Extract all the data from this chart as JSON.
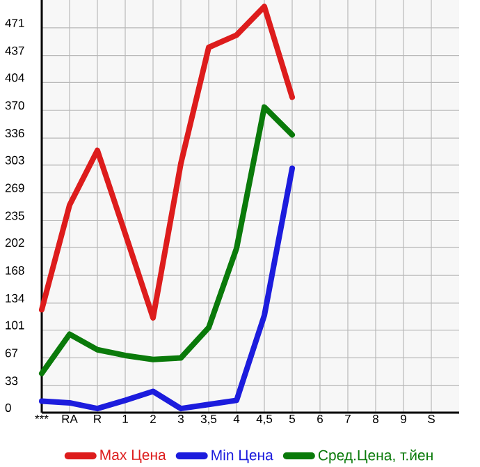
{
  "chart_data": {
    "type": "line",
    "categories": [
      "***",
      "RA",
      "R",
      "1",
      "2",
      "3",
      "3,5",
      "4",
      "4,5",
      "5",
      "6",
      "7",
      "8",
      "9",
      "S"
    ],
    "series": [
      {
        "name": "Max Цена",
        "color": "#dd1c1c",
        "values": [
          126,
          254,
          321,
          219,
          116,
          305,
          447,
          462,
          497,
          386,
          null,
          null,
          null,
          null,
          null
        ]
      },
      {
        "name": "Min Цена",
        "color": "#1c1cdd",
        "values": [
          14,
          12,
          5,
          15,
          26,
          5,
          10,
          15,
          119,
          299,
          null,
          null,
          null,
          null,
          null
        ]
      },
      {
        "name": "Сред.Цена, т.йен",
        "color": "#0a7a0a",
        "values": [
          48,
          96,
          77,
          70,
          65,
          67,
          104,
          201,
          374,
          340,
          null,
          null,
          null,
          null,
          null
        ]
      }
    ],
    "ylim": [
      0,
      505
    ],
    "yticks": [
      0,
      33,
      67,
      101,
      134,
      168,
      202,
      235,
      269,
      303,
      336,
      370,
      404,
      437,
      471
    ],
    "grid": true,
    "legend": "bottom",
    "marker": "none",
    "line_style": "solid"
  }
}
